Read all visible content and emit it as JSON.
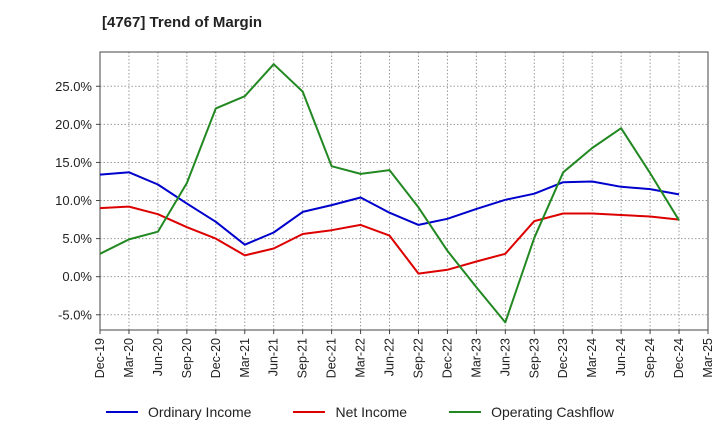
{
  "title": "[4767]  Trend of Margin",
  "chart_data": {
    "type": "line",
    "title": "[4767]  Trend of Margin",
    "xlabel": "",
    "ylabel": "",
    "ylim": [
      -7,
      29.5
    ],
    "x_ticks": [
      "Dec-19",
      "Mar-20",
      "Jun-20",
      "Sep-20",
      "Dec-20",
      "Mar-21",
      "Jun-21",
      "Sep-21",
      "Dec-21",
      "Mar-22",
      "Jun-22",
      "Sep-22",
      "Dec-22",
      "Mar-23",
      "Jun-23",
      "Sep-23",
      "Dec-23",
      "Mar-24",
      "Jun-24",
      "Sep-24",
      "Dec-24",
      "Mar-25"
    ],
    "y_ticks": [
      -5,
      0,
      5,
      10,
      15,
      20,
      25
    ],
    "y_tick_labels": [
      "-5.0%",
      "0.0%",
      "5.0%",
      "10.0%",
      "15.0%",
      "20.0%",
      "25.0%"
    ],
    "grid": true,
    "legend_position": "bottom",
    "categories": [
      "Dec-19",
      "Mar-20",
      "Jun-20",
      "Sep-20",
      "Dec-20",
      "Mar-21",
      "Jun-21",
      "Sep-21",
      "Dec-21",
      "Mar-22",
      "Jun-22",
      "Sep-22",
      "Dec-22",
      "Mar-23",
      "Jun-23",
      "Sep-23",
      "Dec-23",
      "Mar-24",
      "Jun-24",
      "Sep-24",
      "Dec-24"
    ],
    "series": [
      {
        "name": "Ordinary Income",
        "color": "#0000cc",
        "values": [
          13.4,
          13.7,
          12.1,
          9.6,
          7.2,
          4.2,
          5.8,
          8.5,
          9.4,
          10.4,
          8.4,
          6.8,
          7.6,
          8.9,
          10.1,
          10.9,
          12.4,
          12.5,
          11.8,
          11.5,
          10.8
        ]
      },
      {
        "name": "Net Income",
        "color": "#dd0000",
        "values": [
          9.0,
          9.2,
          8.2,
          6.5,
          5.0,
          2.8,
          3.7,
          5.6,
          6.1,
          6.8,
          5.4,
          0.4,
          0.9,
          2.0,
          3.0,
          7.3,
          8.3,
          8.3,
          8.1,
          7.9,
          7.5
        ]
      },
      {
        "name": "Operating Cashflow",
        "color": "#228822",
        "values": [
          3.0,
          4.9,
          5.9,
          12.3,
          22.1,
          23.7,
          27.9,
          24.3,
          14.5,
          13.5,
          14.0,
          9.1,
          3.4,
          -1.4,
          -6.0,
          5.1,
          13.7,
          16.9,
          19.5,
          13.6,
          7.4
        ]
      }
    ]
  }
}
